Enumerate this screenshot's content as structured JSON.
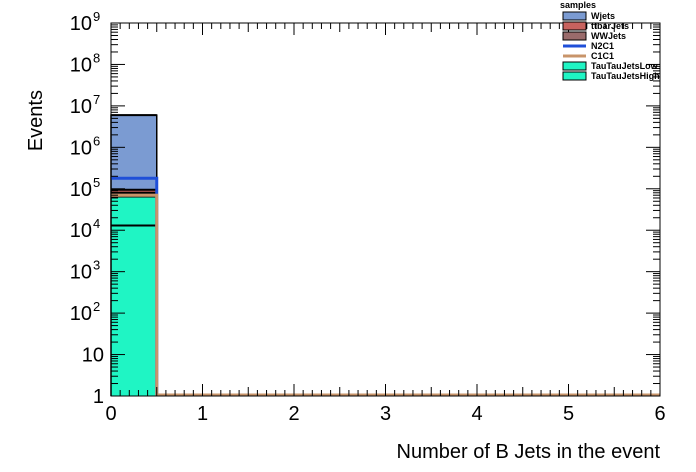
{
  "chart_data": {
    "type": "bar",
    "xlabel": "Number of B Jets in the event",
    "ylabel": "Events",
    "xlim": [
      0,
      6
    ],
    "ylim": [
      1,
      1000000000
    ],
    "y_scale": "log",
    "x_ticks": [
      "0",
      "1",
      "2",
      "3",
      "4",
      "5",
      "6"
    ],
    "y_ticks": [
      {
        "value": 1,
        "base": "1",
        "exp": ""
      },
      {
        "value": 10,
        "base": "10",
        "exp": ""
      },
      {
        "value": 100,
        "base": "10",
        "exp": "2"
      },
      {
        "value": 1000,
        "base": "10",
        "exp": "3"
      },
      {
        "value": 10000,
        "base": "10",
        "exp": "4"
      },
      {
        "value": 100000,
        "base": "10",
        "exp": "5"
      },
      {
        "value": 1000000,
        "base": "10",
        "exp": "6"
      },
      {
        "value": 10000000,
        "base": "10",
        "exp": "7"
      },
      {
        "value": 100000000,
        "base": "10",
        "exp": "8"
      },
      {
        "value": 1000000000,
        "base": "10",
        "exp": "9"
      }
    ],
    "bin_edges": [
      0,
      0.5
    ],
    "legend_title": "samples",
    "legend_position": "top-right",
    "series": [
      {
        "name": "Wjets",
        "kind": "stack",
        "color": "#7b9bd2",
        "top": 6000000
      },
      {
        "name": "ttbarJets",
        "kind": "stack",
        "color": "#c8625e",
        "top": 95000
      },
      {
        "name": "WWJets",
        "kind": "stack",
        "color": "#9a6b6b",
        "top": 80000
      },
      {
        "name": "N2C1",
        "kind": "line",
        "color": "#1f4fd8",
        "value": 180000
      },
      {
        "name": "C1C1",
        "kind": "line",
        "color": "#c8946a",
        "value": 70000
      },
      {
        "name": "TauTauJetsLow",
        "kind": "stack",
        "color": "#1ff5c4",
        "top": 65000
      },
      {
        "name": "TauTauJetsHigh",
        "kind": "stack",
        "color": "#1ff5c4",
        "top": 13000
      }
    ]
  }
}
